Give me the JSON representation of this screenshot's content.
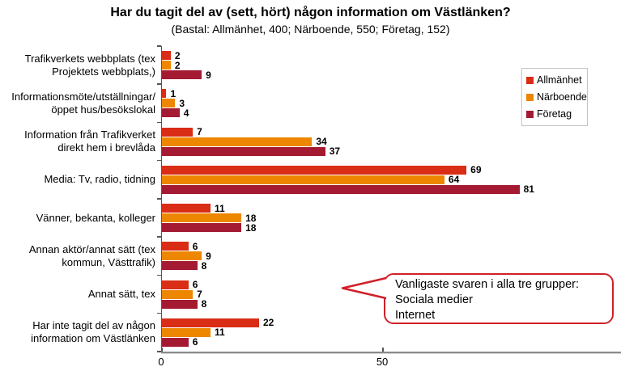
{
  "title": "Har du tagit del av (sett, hört) någon information om Västlänken?",
  "subtitle": "(Bastal: Allmänhet, 400; Närboende, 550; Företag, 152)",
  "chart_data": {
    "type": "bar",
    "orientation": "horizontal",
    "title": "Har du tagit del av (sett, hört) någon information om Västlänken?",
    "subtitle": "(Bastal: Allmänhet, 400; Närboende, 550; Företag, 152)",
    "categories": [
      "Trafikverkets webbplats (tex Projektets webbplats,)",
      "Informationsmöte/utställningar/ öppet hus/besökslokal",
      "Information från Trafikverket direkt hem i brevlåda",
      "Media: Tv, radio, tidning",
      "Vänner, bekanta, kolleger",
      "Annan aktör/annat sätt (tex kommun, Västtrafik)",
      "Annat sätt, tex",
      "Har inte tagit del av någon information om Västlänken"
    ],
    "series": [
      {
        "name": "Allmänhet",
        "color": "#D92D16",
        "values": [
          2,
          1,
          7,
          69,
          11,
          6,
          6,
          22
        ]
      },
      {
        "name": "Närboende",
        "color": "#ED8600",
        "values": [
          2,
          3,
          34,
          64,
          18,
          9,
          7,
          11
        ]
      },
      {
        "name": "Företag",
        "color": "#A41A33",
        "values": [
          9,
          4,
          37,
          81,
          18,
          8,
          8,
          6
        ]
      }
    ],
    "xlim": [
      0,
      104
    ],
    "x_ticks": [
      0,
      50
    ],
    "grid": false,
    "legend_position": "right-top",
    "value_labels": true
  },
  "legend": {
    "items": [
      {
        "label": "Allmänhet",
        "color": "#D92D16"
      },
      {
        "label": "Närboende",
        "color": "#ED8600"
      },
      {
        "label": "Företag",
        "color": "#A41A33"
      }
    ]
  },
  "callout": {
    "border_color": "#D0202A",
    "lines": [
      "Vanligaste svaren i alla tre grupper:",
      "Sociala medier",
      "Internet"
    ]
  }
}
